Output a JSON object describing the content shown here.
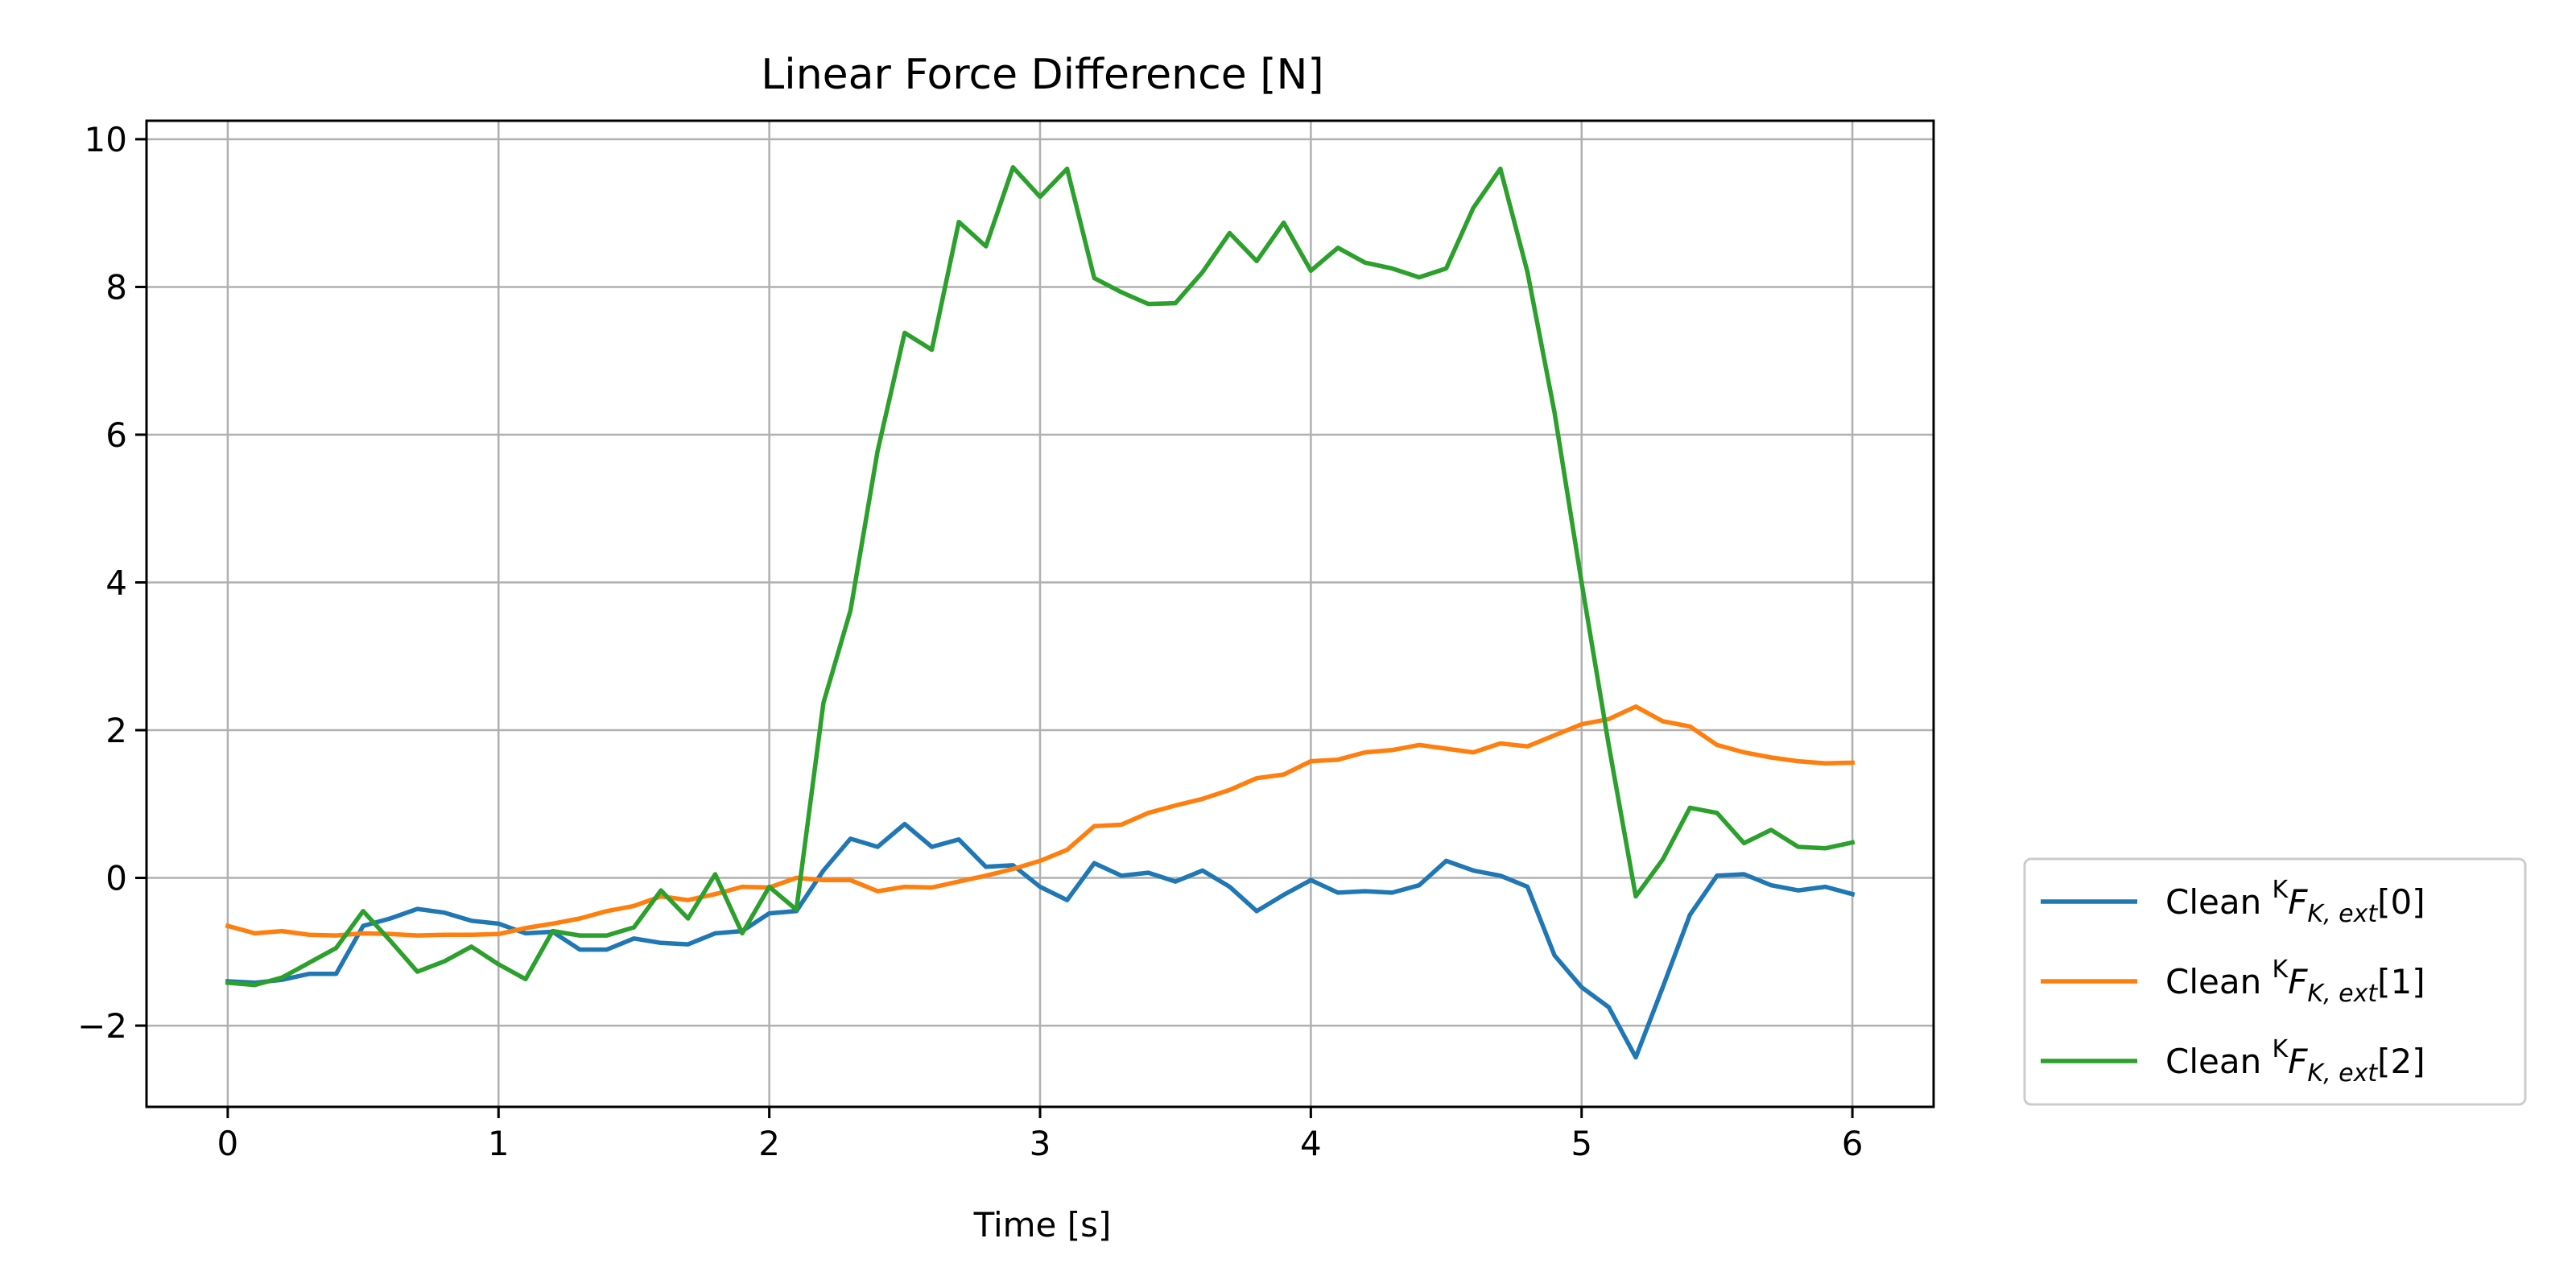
{
  "chart_data": {
    "type": "line",
    "title": "Linear Force Difference [N]",
    "xlabel": "Time [s]",
    "ylabel": "",
    "xlim": [
      -0.3,
      6.3
    ],
    "ylim": [
      -3.1,
      10.25
    ],
    "xticks": [
      0,
      1,
      2,
      3,
      4,
      5,
      6
    ],
    "yticks": [
      -2,
      0,
      2,
      4,
      6,
      8,
      10
    ],
    "xtick_labels": [
      "0",
      "1",
      "2",
      "3",
      "4",
      "5",
      "6"
    ],
    "ytick_labels": [
      "−2",
      "0",
      "2",
      "4",
      "6",
      "8",
      "10"
    ],
    "grid": true,
    "legend_position": "outside-lower-right",
    "x": [
      0.0,
      0.1,
      0.2,
      0.3,
      0.4,
      0.5,
      0.6,
      0.7,
      0.8,
      0.9,
      1.0,
      1.1,
      1.2,
      1.3,
      1.4,
      1.5,
      1.6,
      1.7,
      1.8,
      1.9,
      2.0,
      2.1,
      2.2,
      2.3,
      2.4,
      2.5,
      2.6,
      2.7,
      2.8,
      2.9,
      3.0,
      3.1,
      3.2,
      3.3,
      3.4,
      3.5,
      3.6,
      3.7,
      3.8,
      3.9,
      4.0,
      4.1,
      4.2,
      4.3,
      4.4,
      4.5,
      4.6,
      4.7,
      4.8,
      4.9,
      5.0,
      5.1,
      5.2,
      5.3,
      5.4,
      5.5,
      5.6,
      5.7,
      5.8,
      5.9,
      6.0
    ],
    "series": [
      {
        "name": "Clean",
        "legend_label": "Clean ",
        "legend_math": {
          "sup": "K",
          "main": "F",
          "sub": "K, ext",
          "index": "[0]"
        },
        "color": "#1f77b4",
        "values": [
          -1.4,
          -1.42,
          -1.38,
          -1.3,
          -1.3,
          -0.65,
          -0.55,
          -0.42,
          -0.47,
          -0.58,
          -0.62,
          -0.75,
          -0.73,
          -0.97,
          -0.97,
          -0.82,
          -0.88,
          -0.9,
          -0.75,
          -0.72,
          -0.48,
          -0.45,
          0.1,
          0.53,
          0.42,
          0.73,
          0.42,
          0.52,
          0.15,
          0.17,
          -0.12,
          -0.3,
          0.2,
          0.03,
          0.07,
          -0.05,
          0.1,
          -0.12,
          -0.45,
          -0.23,
          -0.03,
          -0.2,
          -0.18,
          -0.2,
          -0.1,
          0.23,
          0.1,
          0.03,
          -0.12,
          -1.05,
          -1.48,
          -1.75,
          -2.43,
          -1.48,
          -0.5,
          0.03,
          0.05,
          -0.1,
          -0.17,
          -0.12,
          -0.22
        ]
      },
      {
        "name": "Clean",
        "legend_label": "Clean ",
        "legend_math": {
          "sup": "K",
          "main": "F",
          "sub": "K, ext",
          "index": "[1]"
        },
        "color": "#ff7f0e",
        "values": [
          -0.65,
          -0.75,
          -0.72,
          -0.77,
          -0.78,
          -0.75,
          -0.76,
          -0.78,
          -0.77,
          -0.77,
          -0.76,
          -0.68,
          -0.62,
          -0.55,
          -0.45,
          -0.38,
          -0.25,
          -0.3,
          -0.22,
          -0.12,
          -0.13,
          0.0,
          -0.03,
          -0.03,
          -0.18,
          -0.12,
          -0.13,
          -0.05,
          0.03,
          0.12,
          0.23,
          0.38,
          0.7,
          0.72,
          0.88,
          0.98,
          1.07,
          1.19,
          1.35,
          1.4,
          1.58,
          1.6,
          1.7,
          1.73,
          1.8,
          1.75,
          1.7,
          1.82,
          1.78,
          1.93,
          2.08,
          2.15,
          2.32,
          2.12,
          2.05,
          1.8,
          1.7,
          1.63,
          1.58,
          1.55,
          1.56
        ]
      },
      {
        "name": "Clean",
        "legend_label": "Clean ",
        "legend_math": {
          "sup": "K",
          "main": "F",
          "sub": "K, ext",
          "index": "[2]"
        },
        "color": "#2ca02c",
        "values": [
          -1.42,
          -1.45,
          -1.35,
          -1.15,
          -0.95,
          -0.45,
          -0.85,
          -1.27,
          -1.13,
          -0.93,
          -1.17,
          -1.37,
          -0.72,
          -0.78,
          -0.78,
          -0.67,
          -0.17,
          -0.55,
          0.05,
          -0.75,
          -0.12,
          -0.43,
          2.37,
          3.62,
          5.78,
          7.38,
          7.15,
          8.88,
          8.55,
          9.62,
          9.22,
          9.6,
          8.12,
          7.93,
          7.77,
          7.78,
          8.2,
          8.73,
          8.35,
          8.87,
          8.22,
          8.53,
          8.33,
          8.25,
          8.13,
          8.25,
          9.07,
          9.6,
          8.2,
          6.3,
          4.0,
          1.8,
          -0.25,
          0.25,
          0.95,
          0.88,
          0.47,
          0.65,
          0.42,
          0.4,
          0.48
        ]
      }
    ]
  }
}
